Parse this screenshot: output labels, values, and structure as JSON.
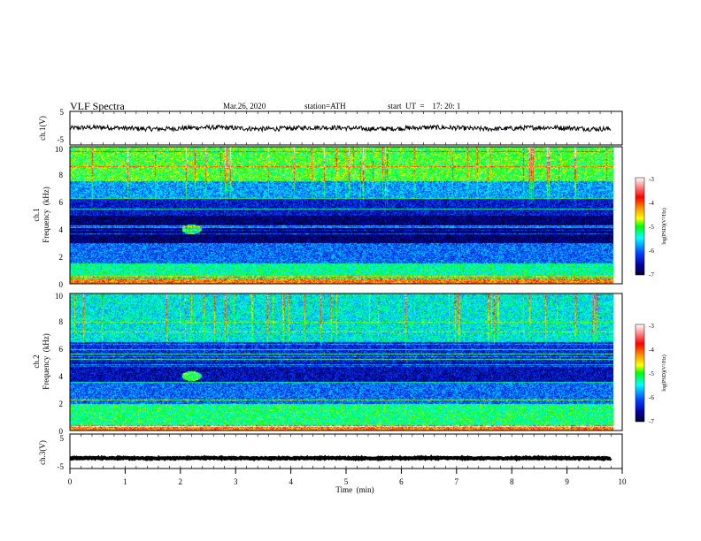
{
  "header": {
    "title": "VLF  Spectra",
    "date": "Mar.26, 2020",
    "station": "station=ATH",
    "start": "start  UT  =    17: 20: 1"
  },
  "chart_data": [
    {
      "type": "line",
      "ylabel": "ch.1(V)",
      "ylim": [
        -5,
        5
      ],
      "y_ticks": [
        "5",
        "-5"
      ],
      "xlim": [
        0,
        10
      ],
      "data_extent_min": [
        0,
        9.8
      ],
      "baseline_value": 0,
      "trace_color": "#000000"
    },
    {
      "type": "heatmap",
      "ylabel": "ch.1\nFrequency  (kHz)",
      "ylabel_lines": [
        "ch.1",
        "Frequency  (kHz)"
      ],
      "ylim": [
        0,
        10
      ],
      "y_ticks": [
        "0",
        "2",
        "4",
        "6",
        "8",
        "10"
      ],
      "xlim": [
        0,
        10
      ],
      "colorbar": {
        "label": "log(PSD)(V²/Hz)",
        "range": [
          -7,
          -3
        ],
        "ticks": [
          "-3",
          "-4",
          "-5",
          "-6",
          "-7"
        ],
        "colors": [
          "#6a0a0a",
          "#ff0000",
          "#ffa500",
          "#ffff00",
          "#00ff00",
          "#00ffff",
          "#0000ff",
          "#000080"
        ]
      },
      "band_levels": [
        {
          "from_khz": 0.0,
          "to_khz": 0.4,
          "level": -4.2
        },
        {
          "from_khz": 0.4,
          "to_khz": 1.5,
          "level": -5.3
        },
        {
          "from_khz": 1.5,
          "to_khz": 3.0,
          "level": -6.0
        },
        {
          "from_khz": 3.0,
          "to_khz": 5.0,
          "level": -6.8
        },
        {
          "from_khz": 5.0,
          "to_khz": 6.2,
          "level": -6.4
        },
        {
          "from_khz": 6.2,
          "to_khz": 7.5,
          "level": -5.8
        },
        {
          "from_khz": 7.5,
          "to_khz": 10.0,
          "level": -5.0
        }
      ],
      "bright_spot": {
        "time_min": 2.2,
        "freq_khz": 4.0
      }
    },
    {
      "type": "heatmap",
      "ylabel": "ch.2\nFrequency  (kHz)",
      "ylabel_lines": [
        "ch.2",
        "Frequency  (kHz)"
      ],
      "ylim": [
        0,
        10
      ],
      "y_ticks": [
        "0",
        "2",
        "4",
        "6",
        "8",
        "10"
      ],
      "xlim": [
        0,
        10
      ],
      "colorbar": {
        "label": "log(PSD)(V²/Hz)",
        "range": [
          -7,
          -3
        ],
        "ticks": [
          "-3",
          "-4",
          "-5",
          "-6",
          "-7"
        ]
      },
      "band_levels": [
        {
          "from_khz": 0.0,
          "to_khz": 0.4,
          "level": -4.2
        },
        {
          "from_khz": 0.4,
          "to_khz": 2.0,
          "level": -5.2
        },
        {
          "from_khz": 2.0,
          "to_khz": 3.5,
          "level": -6.0
        },
        {
          "from_khz": 3.5,
          "to_khz": 5.0,
          "level": -6.5
        },
        {
          "from_khz": 5.0,
          "to_khz": 6.5,
          "level": -6.3
        },
        {
          "from_khz": 6.5,
          "to_khz": 10.0,
          "level": -5.5
        }
      ],
      "bright_spot": {
        "time_min": 2.2,
        "freq_khz": 4.0
      }
    },
    {
      "type": "line",
      "ylabel": "ch.3(V)",
      "ylim": [
        -5,
        5
      ],
      "y_ticks": [
        "5",
        "-5"
      ],
      "xlim": [
        0,
        10
      ],
      "xlabel": "Time  (min)",
      "x_ticks": [
        "0",
        "1",
        "2",
        "3",
        "4",
        "5",
        "6",
        "7",
        "8",
        "9",
        "10"
      ],
      "data_extent_min": [
        0,
        9.8
      ],
      "baseline_value": -2,
      "trace_color": "#000000"
    }
  ]
}
